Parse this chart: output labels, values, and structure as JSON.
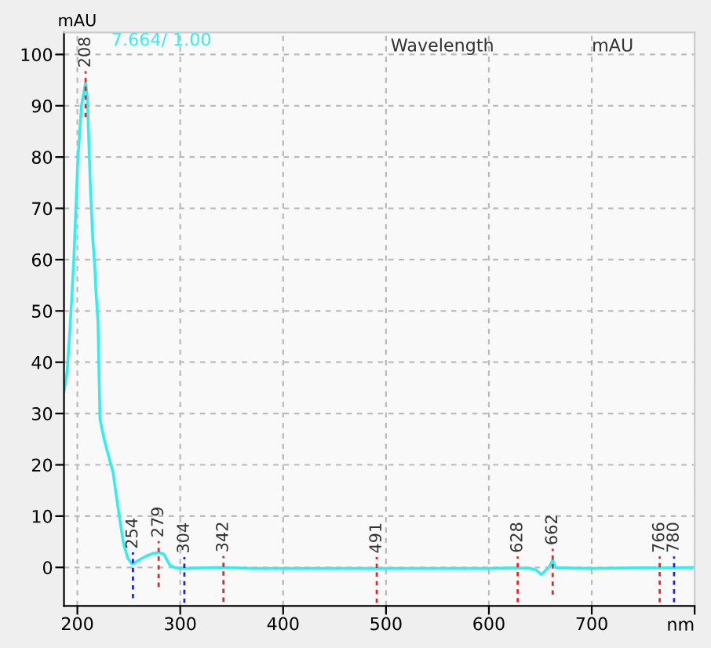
{
  "chart_data": {
    "type": "line",
    "xlabel": "nm",
    "ylabel": "mAU",
    "xlim": [
      187,
      800
    ],
    "ylim": [
      -7.5,
      104.3
    ],
    "xticks": [
      200,
      300,
      400,
      500,
      600,
      700,
      {
        "value": 800,
        "label": null
      }
    ],
    "yticks": [
      0,
      10,
      20,
      30,
      40,
      50,
      60,
      70,
      80,
      90,
      100
    ],
    "grid": true,
    "line_style": "solid",
    "marker": "none",
    "series": [
      {
        "color": "#33eeee",
        "x": [
          187,
          190,
          193,
          196.5,
          200.5,
          204,
          208,
          209.7,
          212.7,
          215,
          216.8,
          218,
          220,
          222,
          226,
          230,
          234.7,
          240,
          244.8,
          249,
          252.5,
          254,
          258,
          263,
          268,
          273,
          279,
          284,
          290,
          296,
          304,
          320,
          342,
          370,
          400,
          450,
          491,
          550,
          600,
          628,
          640,
          646,
          651,
          655,
          659,
          662,
          665,
          670,
          700,
          740,
          766,
          780,
          800
        ],
        "values": [
          34.3,
          38,
          47,
          59.8,
          79.6,
          90,
          94.5,
          91.6,
          73.9,
          64,
          59.1,
          54,
          48,
          28.9,
          25,
          22,
          18.5,
          11,
          4.7,
          1.8,
          0.8,
          0.7,
          1.2,
          1.8,
          2.3,
          2.7,
          2.9,
          2.6,
          0.4,
          -0.1,
          -0.2,
          -0.1,
          0,
          -0.2,
          -0.2,
          -0.2,
          -0.2,
          -0.2,
          -0.2,
          -0.1,
          -0.2,
          -0.5,
          -1.4,
          -0.6,
          0.2,
          1.4,
          -0.1,
          -0.1,
          -0.2,
          -0.1,
          -0.1,
          -0.1,
          0
        ]
      }
    ],
    "annotations": [
      "7.664/ 1.00",
      "Wavelength",
      "mAU",
      {
        "text": "208",
        "x": 208,
        "y": 94.5
      },
      {
        "text": "254",
        "x": 254,
        "y": 0.7
      },
      {
        "text": "279",
        "x": 279,
        "y": 2.9
      },
      {
        "text": "304",
        "x": 304,
        "y": -0.2
      },
      {
        "text": "342",
        "x": 342,
        "y": 0
      },
      {
        "text": "491",
        "x": 491,
        "y": -0.2
      },
      {
        "text": "628",
        "x": 628,
        "y": -0.1
      },
      {
        "text": "662",
        "x": 662,
        "y": 1.4
      },
      {
        "text": "766",
        "x": 766,
        "y": -0.1
      },
      {
        "text": "780",
        "x": 780,
        "y": -0.1
      }
    ]
  }
}
